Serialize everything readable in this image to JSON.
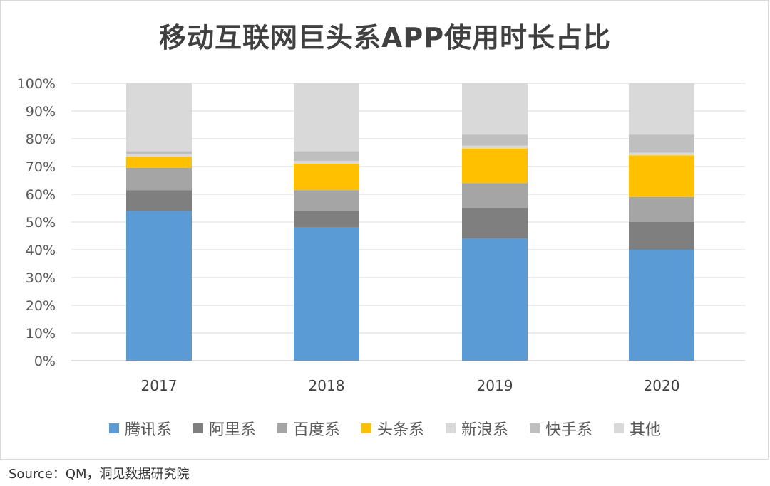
{
  "title": "移动互联网巨头系APP使用时长占比",
  "source": "Source：QM，洞见数据研究院",
  "chart_data": {
    "type": "bar",
    "stacked": true,
    "percent": true,
    "categories": [
      "2017",
      "2018",
      "2019",
      "2020"
    ],
    "ylim": [
      0,
      100
    ],
    "yticks": [
      "0%",
      "10%",
      "20%",
      "30%",
      "40%",
      "50%",
      "60%",
      "70%",
      "80%",
      "90%",
      "100%"
    ],
    "grid": true,
    "legend_position": "bottom",
    "series": [
      {
        "name": "腾讯系",
        "color": "#5b9bd5",
        "values": [
          54,
          48,
          44,
          40
        ]
      },
      {
        "name": "阿里系",
        "color": "#7f7f7f",
        "values": [
          7.5,
          6,
          11,
          10
        ]
      },
      {
        "name": "百度系",
        "color": "#a5a5a5",
        "values": [
          8,
          7.5,
          9,
          9
        ]
      },
      {
        "name": "头条系",
        "color": "#ffc000",
        "values": [
          4,
          9.5,
          12.5,
          15
        ]
      },
      {
        "name": "新浪系",
        "color": "#d9d9d9",
        "values": [
          1,
          1,
          1,
          1
        ]
      },
      {
        "name": "快手系",
        "color": "#bfbfbf",
        "values": [
          1,
          3.5,
          4,
          6.5
        ]
      },
      {
        "name": "其他",
        "color": "#d9d9d9",
        "values": [
          24.5,
          24.5,
          18.5,
          18.5
        ]
      }
    ]
  }
}
